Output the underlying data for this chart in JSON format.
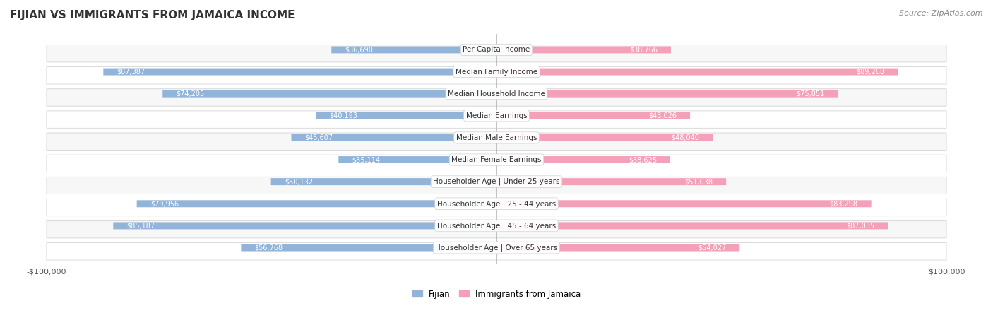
{
  "title": "FIJIAN VS IMMIGRANTS FROM JAMAICA INCOME",
  "source": "Source: ZipAtlas.com",
  "categories": [
    "Per Capita Income",
    "Median Family Income",
    "Median Household Income",
    "Median Earnings",
    "Median Male Earnings",
    "Median Female Earnings",
    "Householder Age | Under 25 years",
    "Householder Age | 25 - 44 years",
    "Householder Age | 45 - 64 years",
    "Householder Age | Over 65 years"
  ],
  "fijian_values": [
    36690,
    87387,
    74205,
    40193,
    45607,
    35114,
    50132,
    79956,
    85187,
    56768
  ],
  "jamaica_values": [
    38766,
    89268,
    75851,
    43026,
    48040,
    38625,
    51038,
    83298,
    87035,
    54027
  ],
  "fijian_labels": [
    "$36,690",
    "$87,387",
    "$74,205",
    "$40,193",
    "$45,607",
    "$35,114",
    "$50,132",
    "$79,956",
    "$85,187",
    "$56,768"
  ],
  "jamaica_labels": [
    "$38,766",
    "$89,268",
    "$75,851",
    "$43,026",
    "$48,040",
    "$38,625",
    "$51,038",
    "$83,298",
    "$87,035",
    "$54,027"
  ],
  "fijian_color": "#92b4d8",
  "fijian_color_dark": "#6699cc",
  "jamaica_color": "#f4a0b8",
  "jamaica_color_dark": "#e8678a",
  "max_value": 100000,
  "background_color": "#ffffff",
  "bar_bg_color": "#f0f0f0",
  "row_bg_even": "#f7f7f7",
  "row_bg_odd": "#ffffff",
  "xlabel_left": "-$100,000",
  "xlabel_right": "$100,000",
  "legend_fijian": "Fijian",
  "legend_jamaica": "Immigrants from Jamaica"
}
